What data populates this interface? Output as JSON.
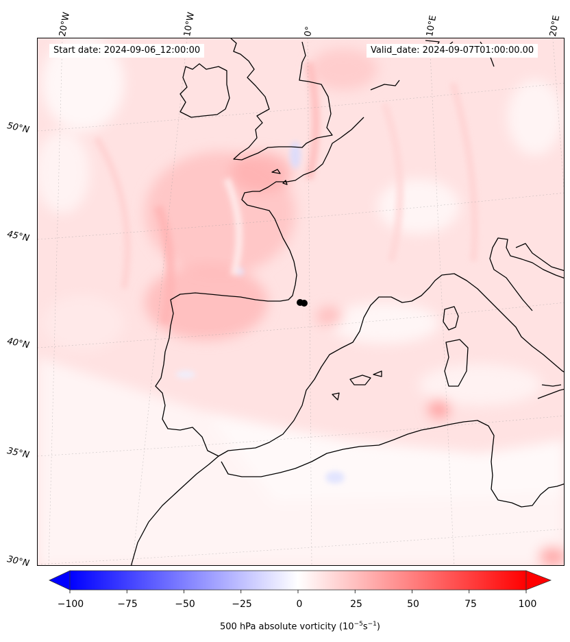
{
  "map": {
    "title_start": "Start date: 2024-09-06_12:00:00",
    "title_valid": "Valid_date: 2024-09-07T01:00:00.00",
    "longitude_labels": [
      "20°W",
      "10°W",
      "0°",
      "10°E",
      "20°E"
    ],
    "latitude_labels": [
      "50°N",
      "45°N",
      "40°N",
      "35°N",
      "30°N"
    ],
    "field": "500 hPa absolute vorticity",
    "coastline_color": "#000000",
    "marker_color": "#000000"
  },
  "colorbar": {
    "ticks": [
      "−100",
      "−75",
      "−50",
      "−25",
      "0",
      "25",
      "50",
      "75",
      "100"
    ],
    "tick_values": [
      -100,
      -75,
      -50,
      -25,
      0,
      25,
      50,
      75,
      100
    ],
    "label_main": "500 hPa absolute vorticity (10",
    "label_exp1": "−5",
    "label_mid": "s",
    "label_exp2": "−1",
    "label_end": ")",
    "colors": {
      "min": "#0000ff",
      "mid": "#ffffff",
      "max": "#ff0000"
    }
  }
}
